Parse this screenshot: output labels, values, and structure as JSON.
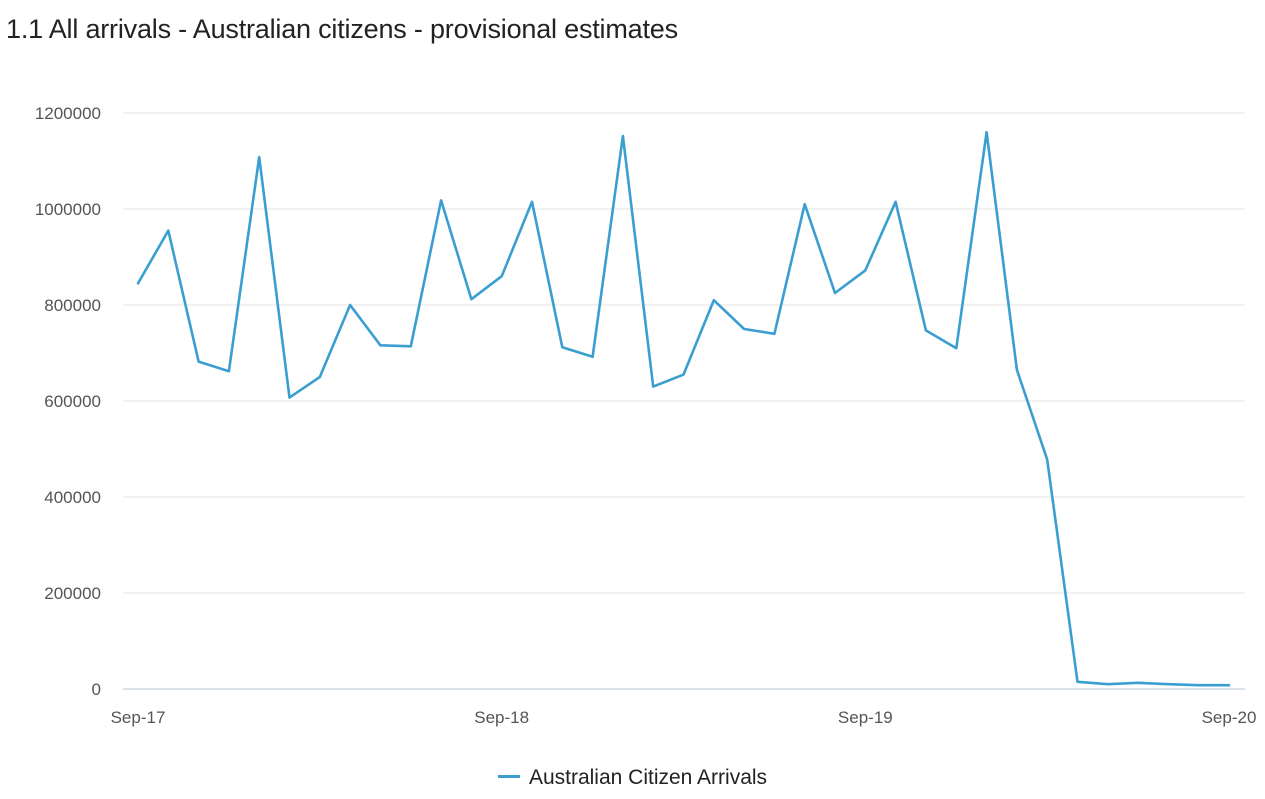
{
  "title": "1.1 All arrivals - Australian citizens - provisional estimates",
  "chart_data": {
    "type": "line",
    "title": "1.1 All arrivals - Australian citizens - provisional estimates",
    "xlabel": "",
    "ylabel": "",
    "x": [
      "Sep-17",
      "Oct-17",
      "Nov-17",
      "Dec-17",
      "Jan-18",
      "Feb-18",
      "Mar-18",
      "Apr-18",
      "May-18",
      "Jun-18",
      "Jul-18",
      "Aug-18",
      "Sep-18",
      "Oct-18",
      "Nov-18",
      "Dec-18",
      "Jan-19",
      "Feb-19",
      "Mar-19",
      "Apr-19",
      "May-19",
      "Jun-19",
      "Jul-19",
      "Aug-19",
      "Sep-19",
      "Oct-19",
      "Nov-19",
      "Dec-19",
      "Jan-20",
      "Feb-20",
      "Mar-20",
      "Apr-20",
      "May-20",
      "Jun-20",
      "Jul-20",
      "Aug-20",
      "Sep-20"
    ],
    "x_tick_labels": [
      "Sep-17",
      "Sep-18",
      "Sep-19",
      "Sep-20"
    ],
    "y_ticks": [
      0,
      200000,
      400000,
      600000,
      800000,
      1000000,
      1200000
    ],
    "ylim": [
      0,
      1200000
    ],
    "grid": true,
    "legend_position": "bottom-center",
    "series": [
      {
        "name": "Australian Citizen Arrivals",
        "color": "#3a9fd0",
        "values": [
          845000,
          955000,
          682000,
          662000,
          1108000,
          607000,
          650000,
          800000,
          716000,
          714000,
          1018000,
          812000,
          860000,
          1015000,
          712000,
          692000,
          1152000,
          630000,
          655000,
          810000,
          750000,
          740000,
          1010000,
          825000,
          872000,
          1015000,
          747000,
          710000,
          1160000,
          665000,
          478000,
          15000,
          10000,
          13000,
          10000,
          8000,
          8000
        ]
      }
    ]
  }
}
